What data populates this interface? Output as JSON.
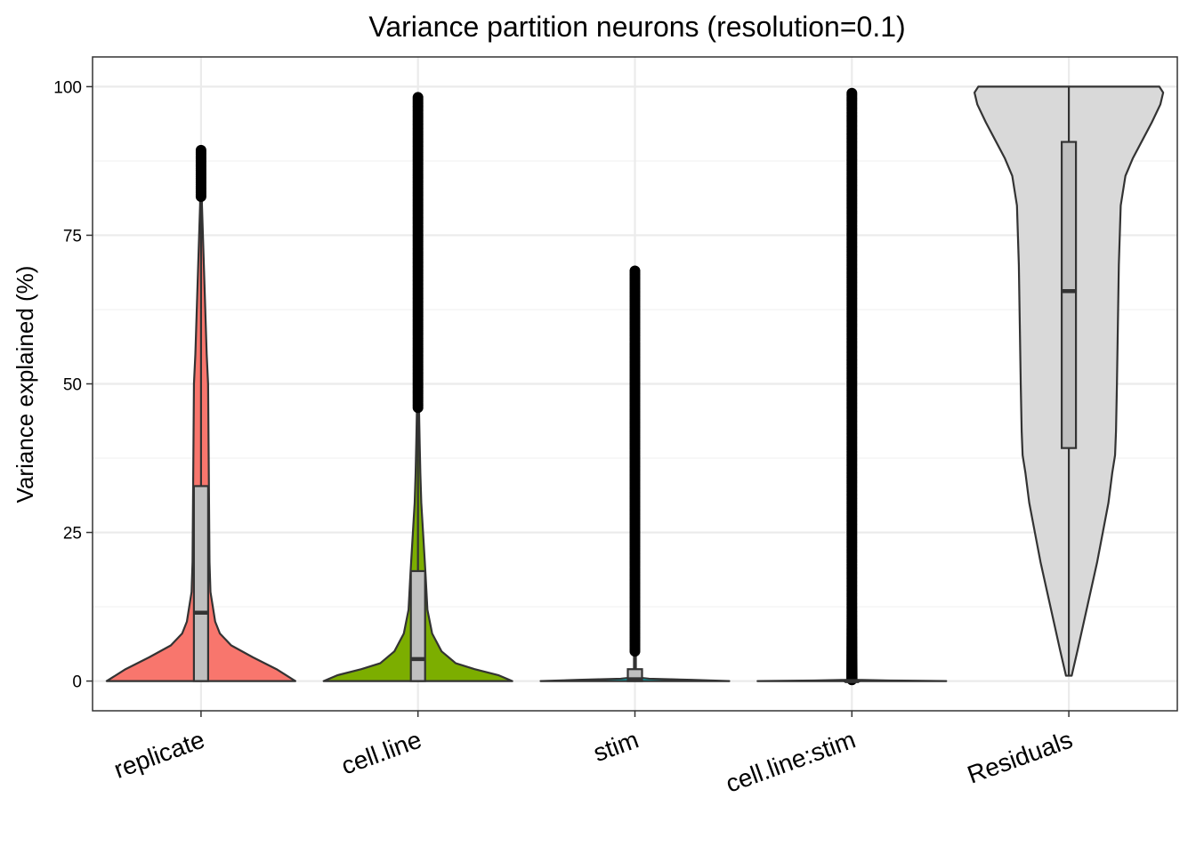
{
  "chart_data": {
    "type": "violin",
    "title": "Variance partition neurons (resolution=0.1)",
    "xlabel": "",
    "ylabel": "Variance explained (%)",
    "ylim": [
      -5,
      105
    ],
    "yticks": [
      0,
      25,
      50,
      75,
      100
    ],
    "grid": true,
    "legend": "none",
    "categories": [
      "replicate",
      "cell.line",
      "stim",
      "cell.line:stim",
      "Residuals"
    ],
    "series": [
      {
        "category": "replicate",
        "color": "#F8766D",
        "box": {
          "q1": 0,
          "median": 11.5,
          "q3": 32.8,
          "whisker_low": 0,
          "whisker_high": 81.5
        },
        "outlier_range": [
          81.5,
          89.3
        ],
        "density": [
          [
            0,
            1.0
          ],
          [
            2,
            0.8
          ],
          [
            4,
            0.55
          ],
          [
            6,
            0.32
          ],
          [
            8,
            0.2
          ],
          [
            10,
            0.15
          ],
          [
            13,
            0.12
          ],
          [
            15,
            0.1
          ],
          [
            20,
            0.09
          ],
          [
            30,
            0.085
          ],
          [
            40,
            0.08
          ],
          [
            50,
            0.075
          ],
          [
            55,
            0.06
          ],
          [
            60,
            0.05
          ],
          [
            65,
            0.04
          ],
          [
            70,
            0.03
          ],
          [
            75,
            0.02
          ],
          [
            80,
            0.01
          ],
          [
            85,
            0.005
          ],
          [
            89.3,
            0.003
          ]
        ]
      },
      {
        "category": "cell.line",
        "color": "#7CAE00",
        "box": {
          "q1": 0,
          "median": 3.7,
          "q3": 18.5,
          "whisker_low": 0,
          "whisker_high": 46
        },
        "outlier_range": [
          46,
          98.2
        ],
        "density": [
          [
            0,
            1.0
          ],
          [
            1,
            0.85
          ],
          [
            2,
            0.6
          ],
          [
            3,
            0.4
          ],
          [
            5,
            0.25
          ],
          [
            8,
            0.15
          ],
          [
            12,
            0.1
          ],
          [
            18,
            0.08
          ],
          [
            22,
            0.065
          ],
          [
            26,
            0.05
          ],
          [
            30,
            0.035
          ],
          [
            35,
            0.025
          ],
          [
            40,
            0.018
          ],
          [
            45,
            0.012
          ],
          [
            50,
            0.006
          ],
          [
            60,
            0.004
          ],
          [
            70,
            0.003
          ],
          [
            80,
            0.003
          ],
          [
            90,
            0.002
          ],
          [
            98.2,
            0.001
          ]
        ]
      },
      {
        "category": "stim",
        "color": "#00BFC4",
        "box": {
          "q1": 0,
          "median": 0.3,
          "q3": 2.0,
          "whisker_low": 0,
          "whisker_high": 5
        },
        "outlier_range": [
          5,
          69
        ],
        "density": [
          [
            0,
            1.0
          ],
          [
            0.2,
            0.6
          ],
          [
            0.4,
            0.15
          ],
          [
            0.6,
            0.03
          ],
          [
            1,
            0.01
          ],
          [
            69,
            0.001
          ]
        ]
      },
      {
        "category": "cell.line:stim",
        "color": "#C77CFF",
        "box": {
          "q1": 0,
          "median": 0,
          "q3": 0.1,
          "whisker_low": 0,
          "whisker_high": 0.2
        },
        "outlier_range": [
          0.2,
          98.9
        ],
        "density": [
          [
            0,
            1.0
          ],
          [
            0.1,
            0.4
          ],
          [
            0.2,
            0.05
          ],
          [
            98.9,
            0.001
          ]
        ]
      },
      {
        "category": "Residuals",
        "color": "#D9D9D9",
        "box": {
          "q1": 39.2,
          "median": 65.6,
          "q3": 90.7,
          "whisker_low": 0.9,
          "whisker_high": 100
        },
        "outlier_range": null,
        "density": [
          [
            0.9,
            0.03
          ],
          [
            5,
            0.09
          ],
          [
            10,
            0.16
          ],
          [
            15,
            0.23
          ],
          [
            20,
            0.3
          ],
          [
            25,
            0.36
          ],
          [
            30,
            0.42
          ],
          [
            35,
            0.46
          ],
          [
            38,
            0.49
          ],
          [
            42,
            0.5
          ],
          [
            50,
            0.51
          ],
          [
            60,
            0.52
          ],
          [
            70,
            0.53
          ],
          [
            80,
            0.55
          ],
          [
            85,
            0.6
          ],
          [
            88,
            0.68
          ],
          [
            91,
            0.78
          ],
          [
            94,
            0.88
          ],
          [
            97,
            0.97
          ],
          [
            99,
            1.0
          ],
          [
            100,
            0.96
          ]
        ]
      }
    ]
  }
}
